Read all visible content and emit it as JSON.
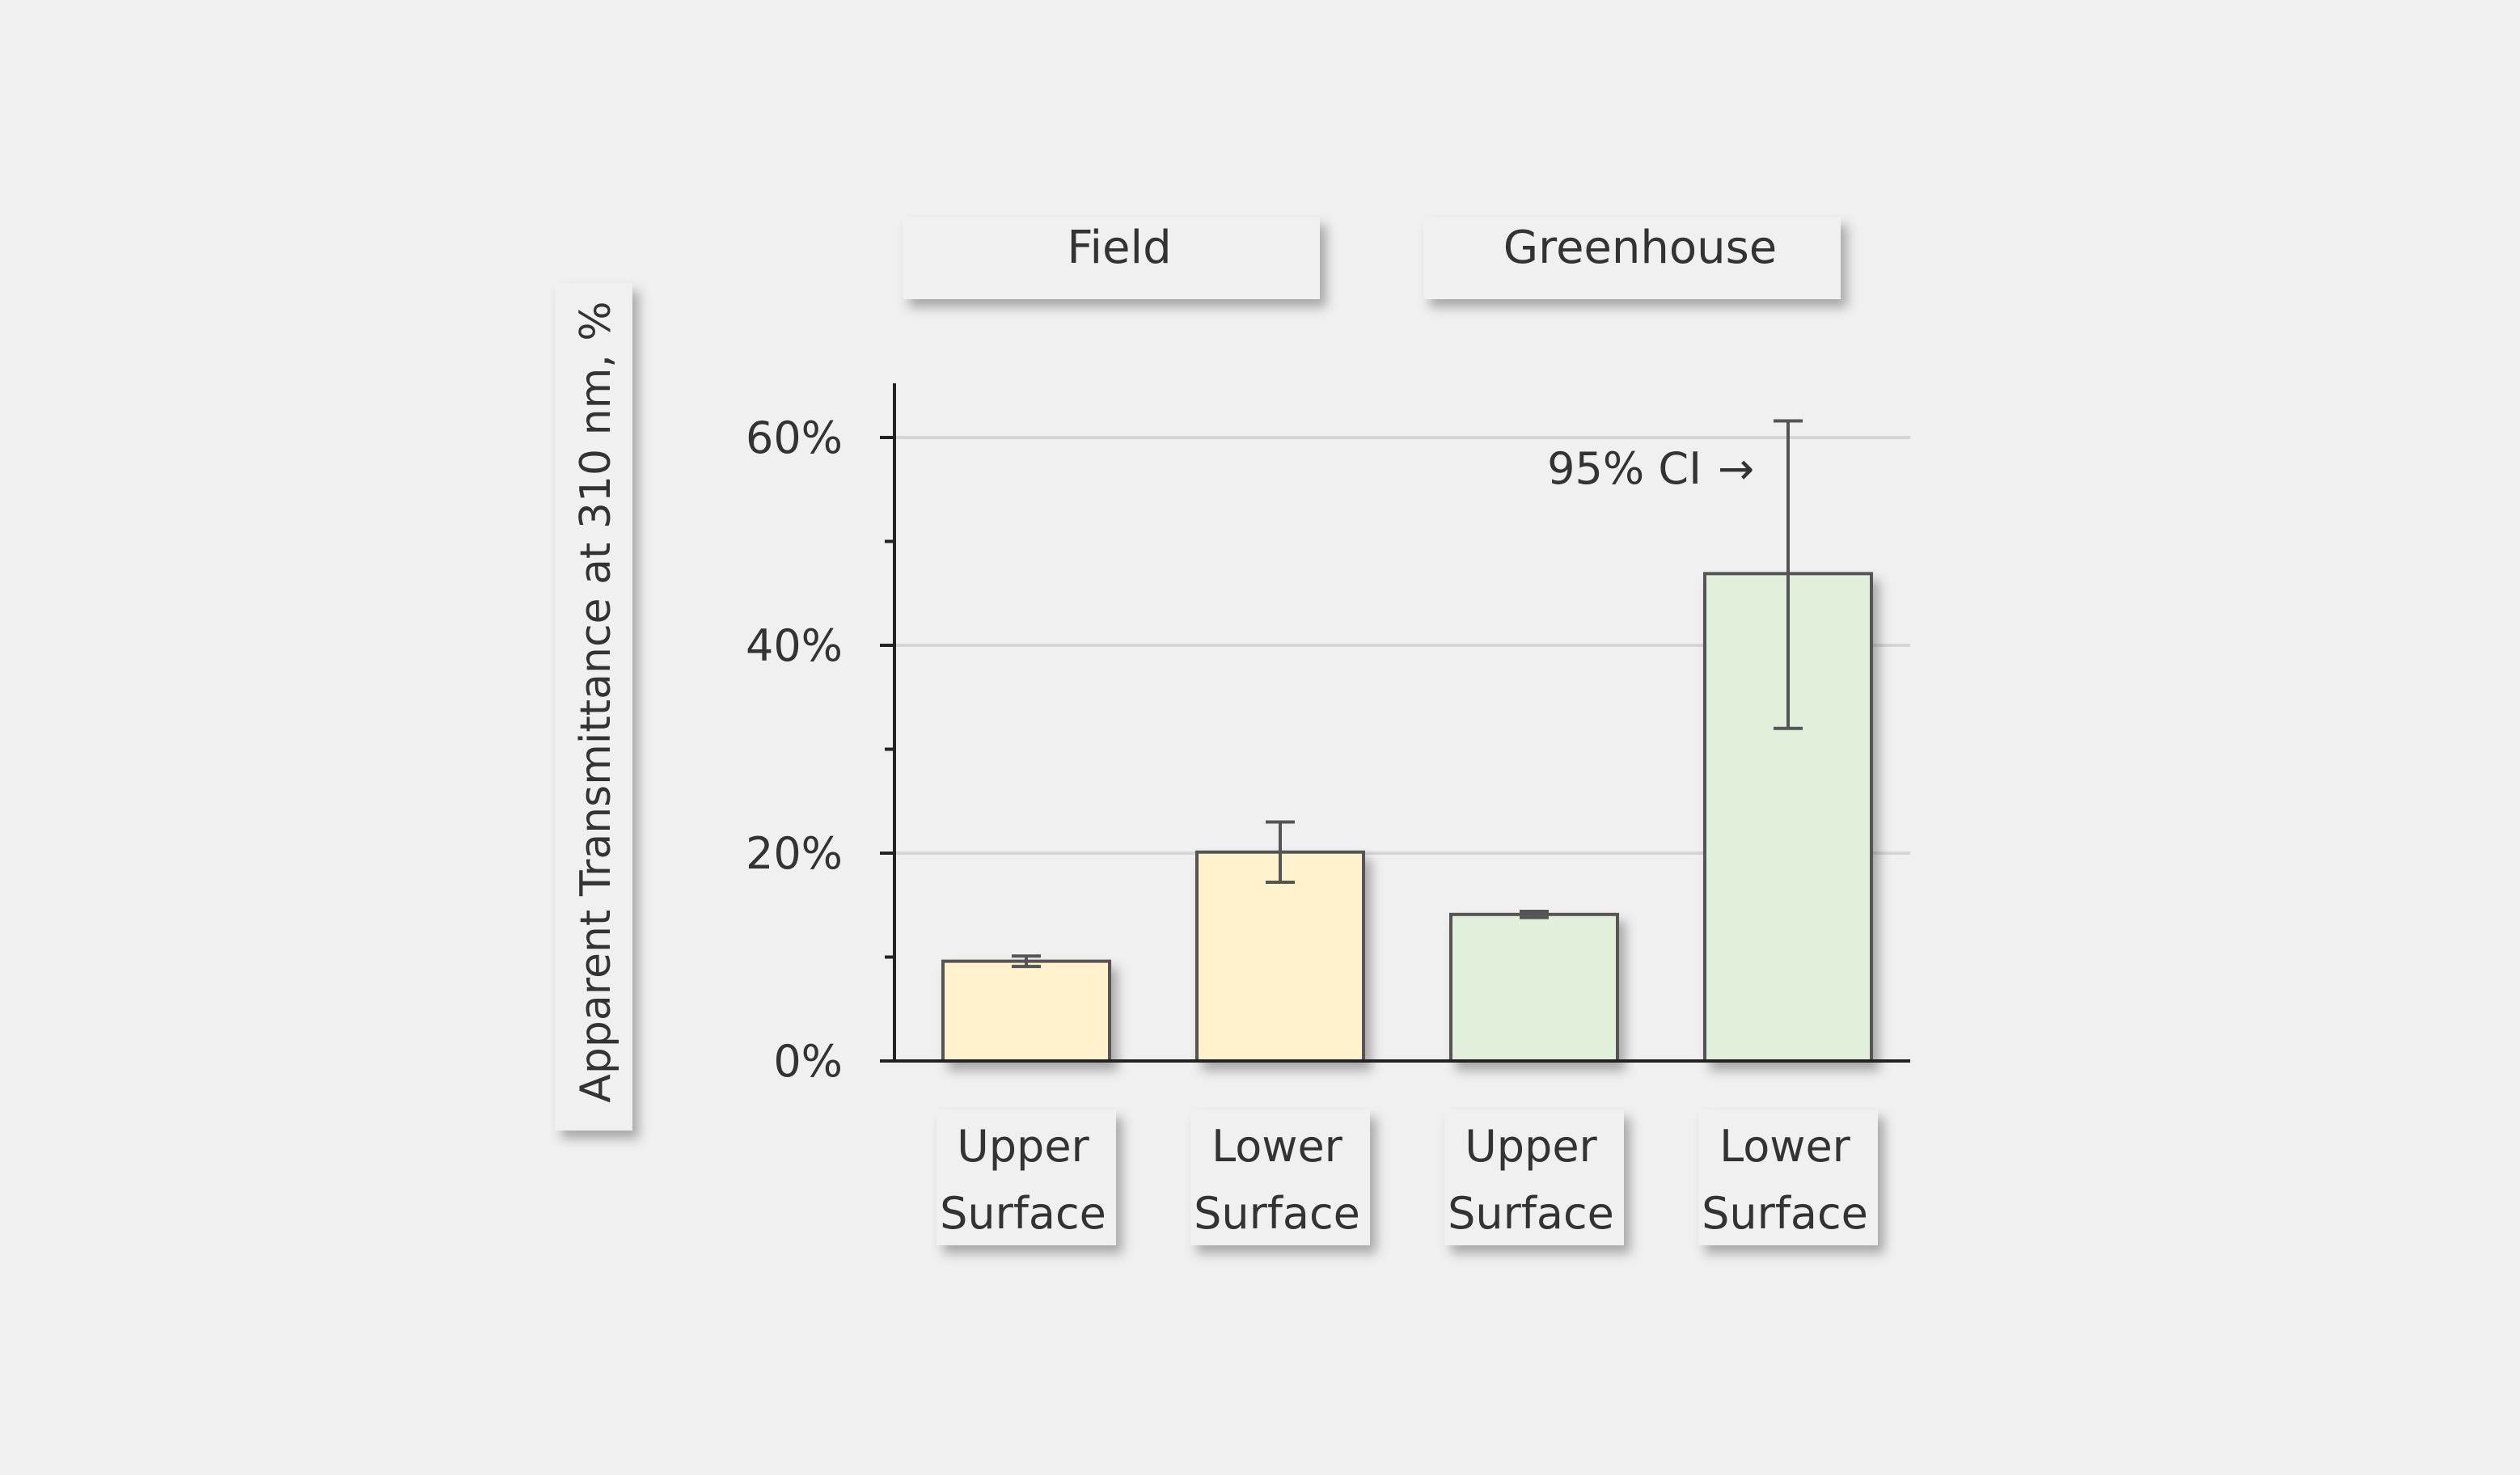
{
  "chart_data": {
    "type": "bar",
    "ylabel": "Apparent Transmittance at 310 nm, %",
    "ylim": [
      0,
      65
    ],
    "yticks": [
      0,
      20,
      40,
      60
    ],
    "ytick_labels": [
      "0%",
      "20%",
      "40%",
      "60%"
    ],
    "minor_ticks": [
      10,
      30,
      50
    ],
    "grid": true,
    "groups": [
      {
        "label": "Field",
        "color": "#fff2cc"
      },
      {
        "label": "Greenhouse",
        "color": "#e2efda"
      }
    ],
    "bars": [
      {
        "group": 0,
        "label_line1": "Upper",
        "label_line2": "Surface",
        "value": 9.6,
        "ci_low": 9.1,
        "ci_high": 10.1
      },
      {
        "group": 0,
        "label_line1": "Lower",
        "label_line2": "Surface",
        "value": 20.1,
        "ci_low": 17.2,
        "ci_high": 23.0
      },
      {
        "group": 1,
        "label_line1": "Upper",
        "label_line2": "Surface",
        "value": 14.1,
        "ci_low": 13.8,
        "ci_high": 14.4
      },
      {
        "group": 1,
        "label_line1": "Lower",
        "label_line2": "Surface",
        "value": 46.9,
        "ci_low": 32.0,
        "ci_high": 61.6
      }
    ],
    "annotation": {
      "text": "95% CI",
      "arrow": "→"
    }
  },
  "colors": {
    "bar_stroke": "#555555",
    "axis": "#222222",
    "grid": "#d6d6d6",
    "text": "#333333",
    "label_box": "#f0f0f0"
  }
}
